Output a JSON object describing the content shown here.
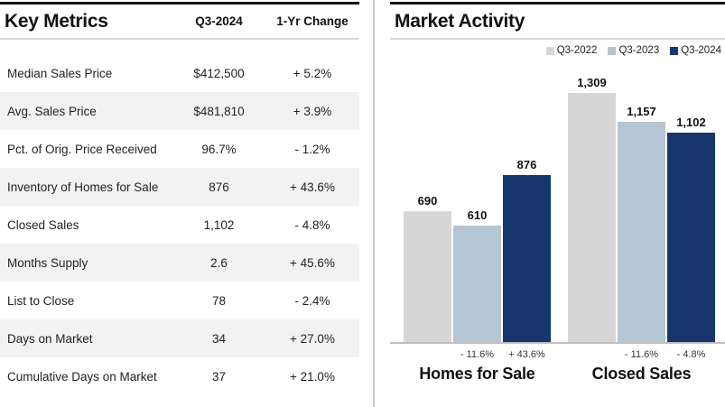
{
  "colors": {
    "top_accent_bar": "#141414",
    "row_alt_bg": "#f2f2f2",
    "header_underline": "#d9d9d9",
    "panel_divider": "#c9c9c9",
    "axis_line": "#bfbfbf"
  },
  "key_metrics": {
    "title": "Key Metrics",
    "col_period": "Q3-2024",
    "col_change": "1-Yr Change",
    "rows": [
      {
        "label": "Median Sales Price",
        "value": "$412,500",
        "change": "+ 5.2%"
      },
      {
        "label": "Avg. Sales Price",
        "value": "$481,810",
        "change": "+ 3.9%"
      },
      {
        "label": "Pct. of Orig. Price Received",
        "value": "96.7%",
        "change": "- 1.2%"
      },
      {
        "label": "Inventory of Homes for Sale",
        "value": "876",
        "change": "+ 43.6%"
      },
      {
        "label": "Closed Sales",
        "value": "1,102",
        "change": "- 4.8%"
      },
      {
        "label": "Months Supply",
        "value": "2.6",
        "change": "+ 45.6%"
      },
      {
        "label": "List to Close",
        "value": "78",
        "change": "- 2.4%"
      },
      {
        "label": "Days on Market",
        "value": "34",
        "change": "+ 27.0%"
      },
      {
        "label": "Cumulative Days on Market",
        "value": "37",
        "change": "+ 21.0%"
      }
    ]
  },
  "chart_data": {
    "type": "bar",
    "title": "Market Activity",
    "categories": [
      "Homes for Sale",
      "Closed Sales"
    ],
    "series": [
      {
        "name": "Q3-2022",
        "color": "#d6d6d6",
        "values": [
          690,
          1309
        ],
        "labels": [
          "690",
          "1,309"
        ],
        "pct_labels": [
          "",
          ""
        ]
      },
      {
        "name": "Q3-2023",
        "color": "#b4c5d4",
        "values": [
          610,
          1157
        ],
        "labels": [
          "610",
          "1,157"
        ],
        "pct_labels": [
          "- 11.6%",
          "- 11.6%"
        ]
      },
      {
        "name": "Q3-2024",
        "color": "#17366d",
        "values": [
          876,
          1102
        ],
        "labels": [
          "876",
          "1,102"
        ],
        "pct_labels": [
          "+ 43.6%",
          "- 4.8%"
        ]
      }
    ],
    "ylim": [
      0,
      1400
    ],
    "grid": false,
    "legend_position": "top-right",
    "value_labels_shown": true
  }
}
